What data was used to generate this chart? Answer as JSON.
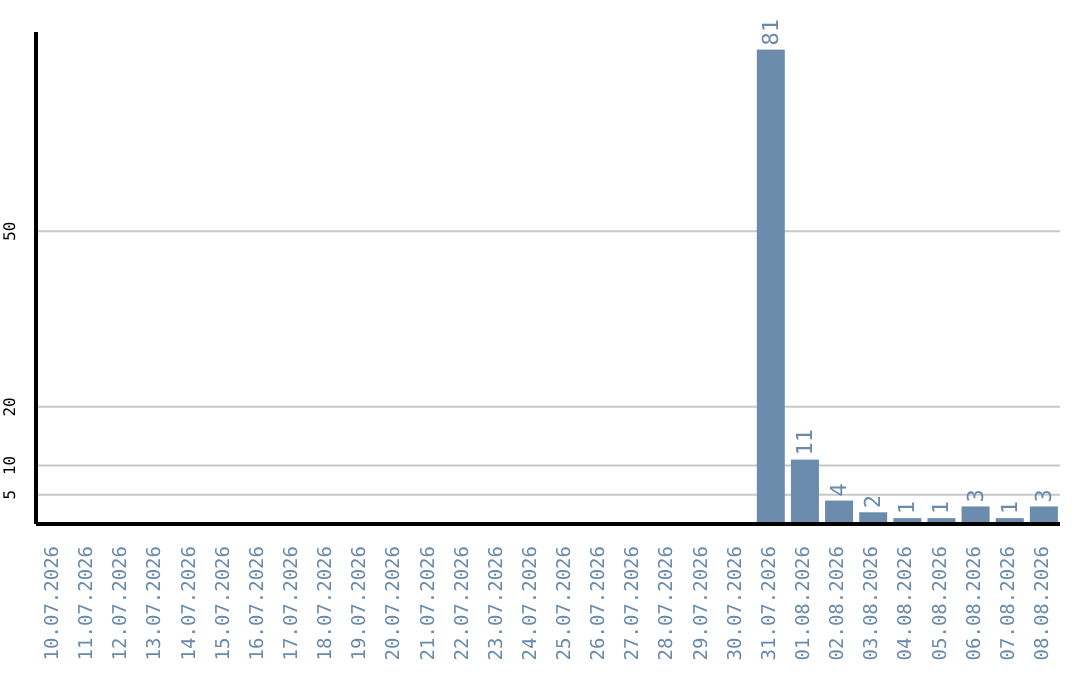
{
  "chart_data": {
    "type": "bar",
    "categories": [
      "10.07.2026",
      "11.07.2026",
      "12.07.2026",
      "13.07.2026",
      "14.07.2026",
      "15.07.2026",
      "16.07.2026",
      "17.07.2026",
      "18.07.2026",
      "19.07.2026",
      "20.07.2026",
      "21.07.2026",
      "22.07.2026",
      "23.07.2026",
      "24.07.2026",
      "25.07.2026",
      "26.07.2026",
      "27.07.2026",
      "28.07.2026",
      "29.07.2026",
      "30.07.2026",
      "31.07.2026",
      "01.08.2026",
      "02.08.2026",
      "03.08.2026",
      "04.08.2026",
      "05.08.2026",
      "06.08.2026",
      "07.08.2026",
      "08.08.2026"
    ],
    "values": [
      0,
      0,
      0,
      0,
      0,
      0,
      0,
      0,
      0,
      0,
      0,
      0,
      0,
      0,
      0,
      0,
      0,
      0,
      0,
      0,
      0,
      81,
      11,
      4,
      2,
      1,
      1,
      3,
      1,
      3
    ],
    "value_labels": [
      null,
      null,
      null,
      null,
      null,
      null,
      null,
      null,
      null,
      null,
      null,
      null,
      null,
      null,
      null,
      null,
      null,
      null,
      null,
      null,
      null,
      "81",
      "11",
      "4",
      "2",
      "1",
      "1",
      "3",
      "1",
      "3"
    ],
    "color": "#6b8cad",
    "ylim": [
      0,
      84
    ],
    "yticks": [
      5,
      10,
      20,
      50
    ],
    "grid": "y"
  }
}
